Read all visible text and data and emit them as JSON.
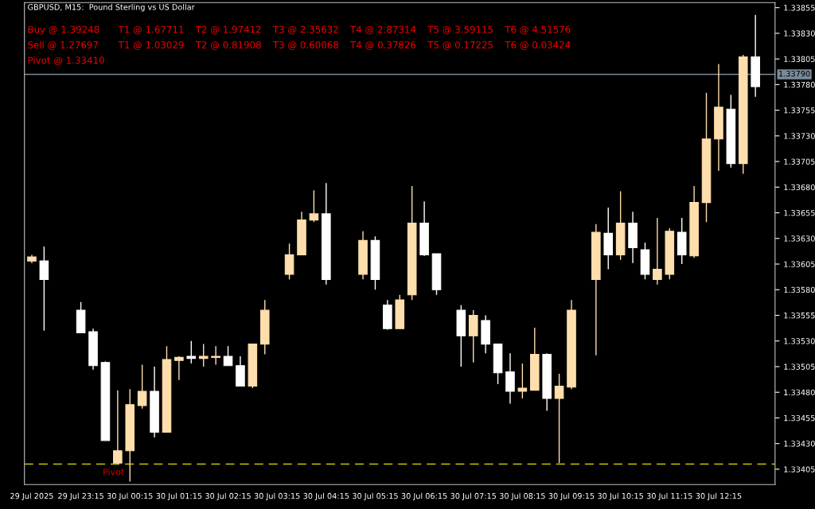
{
  "chart_data": {
    "type": "candlestick",
    "title": "GBPUSD, M15:  Pound Sterling vs US Dollar",
    "annotations": [
      "Buy @ 1.39248",
      "T1 @ 1.67711",
      "T2 @ 1.97412",
      "T3 @ 2.35632",
      "T4 @ 2.87314",
      "T5 @ 3.59115",
      "T6 @ 4.51576",
      "Sell @ 1.27697",
      "T1 @ 1.03029",
      "T2 @ 0.81908",
      "T3 @ 0.60068",
      "T4 @ 0.37826",
      "T5 @ 0.17225",
      "T6 @ 0.03424",
      "Pivot @ 1.33410"
    ],
    "categories": [
      "29 Jul 2025",
      null,
      null,
      null,
      "29 Jul 23:15",
      null,
      null,
      null,
      "30 Jul 00:15",
      null,
      null,
      null,
      "30 Jul 01:15",
      null,
      null,
      null,
      "30 Jul 02:15",
      null,
      null,
      null,
      "30 Jul 03:15",
      null,
      null,
      null,
      "30 Jul 04:15",
      null,
      null,
      null,
      "30 Jul 05:15",
      null,
      null,
      null,
      "30 Jul 06:15",
      null,
      null,
      null,
      "30 Jul 07:15",
      null,
      null,
      null,
      "30 Jul 08:15",
      null,
      null,
      null,
      "30 Jul 09:15",
      null,
      null,
      null,
      "30 Jul 10:15",
      null,
      null,
      null,
      "30 Jul 11:15",
      null,
      null,
      null,
      "30 Jul 12:15",
      null,
      null,
      null
    ],
    "ohlc": [
      [
        1.33608,
        1.33614,
        1.33606,
        1.33612
      ],
      [
        1.33608,
        1.33622,
        1.3354,
        1.3359
      ],
      null,
      null,
      [
        1.3356,
        1.33568,
        1.33538,
        1.33538
      ],
      [
        1.33539,
        1.33542,
        1.33502,
        1.33506
      ],
      [
        1.33509,
        1.3351,
        1.33433,
        1.33433
      ],
      [
        1.33411,
        1.33482,
        1.3341,
        1.33423
      ],
      [
        1.33423,
        1.33483,
        1.33393,
        1.33468
      ],
      [
        1.33467,
        1.33507,
        1.33464,
        1.33481
      ],
      [
        1.33481,
        1.33505,
        1.33436,
        1.33441
      ],
      [
        1.33441,
        1.33525,
        1.33441,
        1.33512
      ],
      [
        1.33511,
        1.33515,
        1.33492,
        1.33514
      ],
      [
        1.33515,
        1.3353,
        1.33508,
        1.33513
      ],
      [
        1.33513,
        1.33527,
        1.33505,
        1.33515
      ],
      [
        1.33514,
        1.33525,
        1.33507,
        1.33515
      ],
      [
        1.33515,
        1.33525,
        1.33506,
        1.33506
      ],
      [
        1.33506,
        1.33515,
        1.33486,
        1.33486
      ],
      [
        1.33486,
        1.33527,
        1.33484,
        1.33527
      ],
      [
        1.33527,
        1.3357,
        1.33517,
        1.3356
      ],
      null,
      [
        1.33595,
        1.33625,
        1.3359,
        1.33614
      ],
      [
        1.33614,
        1.33656,
        1.33614,
        1.33648
      ],
      [
        1.33648,
        1.33677,
        1.33646,
        1.33654
      ],
      [
        1.33654,
        1.33684,
        1.33585,
        1.3359
      ],
      null,
      null,
      [
        1.33595,
        1.33637,
        1.3359,
        1.33628
      ],
      [
        1.33628,
        1.33632,
        1.3358,
        1.3359
      ],
      [
        1.33565,
        1.3357,
        1.33541,
        1.33542
      ],
      [
        1.33542,
        1.33575,
        1.33542,
        1.3357
      ],
      [
        1.33575,
        1.33681,
        1.3357,
        1.33645
      ],
      [
        1.33645,
        1.33666,
        1.33613,
        1.33614
      ],
      [
        1.33615,
        1.33615,
        1.33575,
        1.3358
      ],
      null,
      [
        1.3356,
        1.33565,
        1.33505,
        1.33535
      ],
      [
        1.33535,
        1.3356,
        1.33509,
        1.33555
      ],
      [
        1.3355,
        1.33555,
        1.33518,
        1.33527
      ],
      [
        1.33527,
        1.33527,
        1.33488,
        1.33499
      ],
      [
        1.335,
        1.33518,
        1.33469,
        1.33481
      ],
      [
        1.33481,
        1.33508,
        1.33474,
        1.33484
      ],
      [
        1.33482,
        1.33543,
        1.33482,
        1.33517
      ],
      [
        1.33517,
        1.33518,
        1.33462,
        1.33474
      ],
      [
        1.33474,
        1.33498,
        1.33411,
        1.33486
      ],
      [
        1.33485,
        1.3357,
        1.33483,
        1.3356
      ],
      null,
      [
        1.3359,
        1.33644,
        1.33516,
        1.33636
      ],
      [
        1.33635,
        1.3366,
        1.336,
        1.33614
      ],
      [
        1.33614,
        1.33676,
        1.33609,
        1.33645
      ],
      [
        1.33645,
        1.33656,
        1.33606,
        1.33621
      ],
      [
        1.33619,
        1.33626,
        1.3359,
        1.33595
      ],
      [
        1.3359,
        1.3365,
        1.33585,
        1.336
      ],
      [
        1.33595,
        1.3364,
        1.3359,
        1.33637
      ],
      [
        1.33636,
        1.3365,
        1.33605,
        1.33614
      ],
      [
        1.33613,
        1.33681,
        1.33611,
        1.33665
      ],
      [
        1.33665,
        1.33772,
        1.33646,
        1.33727
      ],
      [
        1.33727,
        1.338,
        1.33696,
        1.33758
      ],
      [
        1.33756,
        1.3377,
        1.33699,
        1.33703
      ],
      [
        1.33703,
        1.33809,
        1.33693,
        1.33807
      ],
      [
        1.33807,
        1.33848,
        1.33768,
        1.33778
      ]
    ],
    "colors": [
      "#ffdead",
      "#ffffff",
      "#ffffff",
      "#ffffff",
      "#ffffff",
      "#ffffff",
      "#ffffff",
      "#ffdead",
      "#ffdead",
      "#ffdead",
      "#ffffff",
      "#ffdead",
      "#ffdead",
      "#ffffff",
      "#ffdead",
      "#ffdead",
      "#ffffff",
      "#ffffff",
      "#ffdead",
      "#ffdead",
      "#ffffff",
      "#ffdead",
      "#ffdead",
      "#ffdead",
      "#ffffff",
      "#ffffff",
      "#ffffff",
      "#ffdead",
      "#ffffff",
      "#ffffff",
      "#ffdead",
      "#ffdead",
      "#ffffff",
      "#ffffff",
      "#ffffff",
      "#ffffff",
      "#ffdead",
      "#ffffff",
      "#ffffff",
      "#ffffff",
      "#ffdead",
      "#ffdead",
      "#ffffff",
      "#ffdead",
      "#ffdead",
      "#ffffff",
      "#ffdead",
      "#ffffff",
      "#ffdead",
      "#ffffff",
      "#ffffff",
      "#ffdead",
      "#ffdead",
      "#ffffff",
      "#ffdead",
      "#ffdead",
      "#ffdead",
      "#ffffff",
      "#ffdead",
      "#ffffff"
    ],
    "ylim": [
      1.3339,
      1.3386
    ],
    "yticks": [
      1.33405,
      {
        "value": 1.3343,
        "label": "1.33430"
      },
      1.33455,
      {
        "value": 1.3348,
        "label": "1.33480"
      },
      1.33505,
      {
        "value": 1.3353,
        "label": "1.33530"
      },
      1.33555,
      {
        "value": 1.3358,
        "label": "1.33580"
      },
      1.33605,
      {
        "value": 1.3363,
        "label": "1.33630"
      },
      1.33655,
      {
        "value": 1.3368,
        "label": "1.33680"
      },
      1.33705,
      {
        "value": 1.3373,
        "label": "1.33730"
      },
      1.33755,
      {
        "value": 1.3378,
        "label": "1.33780"
      },
      1.33805,
      {
        "value": 1.3383,
        "label": "1.33830"
      },
      1.33855
    ],
    "ref_lines": [
      {
        "axis": "y",
        "value": 1.3341,
        "label": "Pivot",
        "color": "#c8c800",
        "line_style": "dashed"
      },
      {
        "axis": "y",
        "value": 1.3379,
        "label": "1.33790",
        "color": "#7a8a9a",
        "line_style": "solid"
      }
    ],
    "grid": false,
    "legend": false
  }
}
